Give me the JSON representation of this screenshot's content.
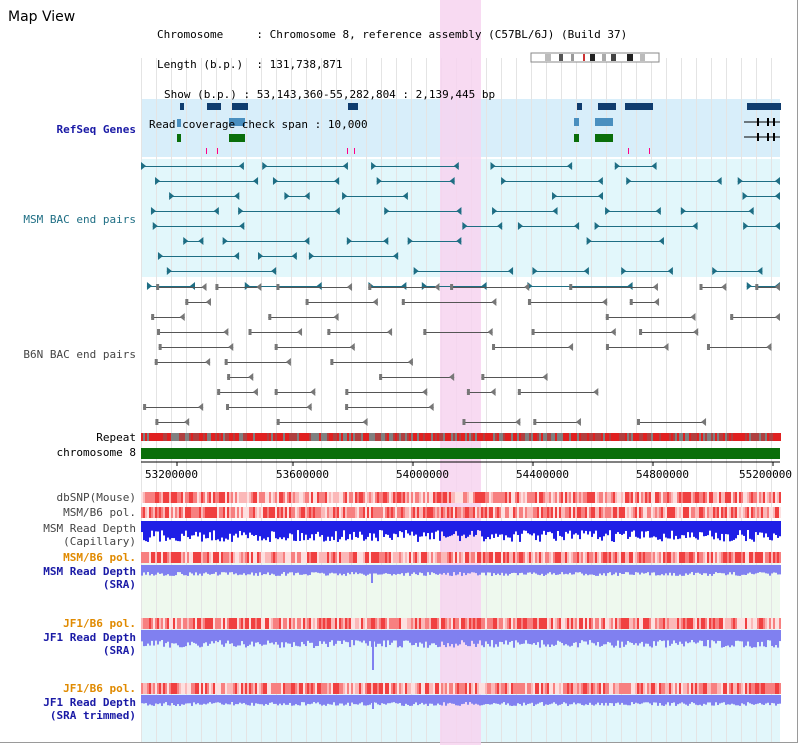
{
  "app": {
    "title": "Map View"
  },
  "info": {
    "chromosome_label": "Chromosome",
    "chromosome_value": "Chromosome 8, reference assembly (C57BL/6J) (Build 37)",
    "length_label": "Length (b.p.)",
    "length_value": "131,738,871",
    "show_label": "Show (b.p.)",
    "show_value": "53,143,360-55,282,804 : 2,139,445 bp",
    "coverage_label": "Read coverage check span",
    "coverage_value": "10,000"
  },
  "tracks": {
    "refseq": "RefSeq Genes",
    "msm_bac": "MSM BAC end pairs",
    "b6n_bac": "B6N BAC end pairs",
    "repeat": "Repeat",
    "chromosome": "chromosome 8",
    "dbsnp": "dbSNP(Mouse)",
    "msm_b6_pol": "MSM/B6 pol.",
    "msm_depth_cap_1": "MSM Read Depth",
    "msm_depth_cap_2": "(Capillary)",
    "msm_b6_pol_2": "MSM/B6 pol.",
    "msm_depth_sra_1": "MSM Read Depth",
    "msm_depth_sra_2": "(SRA)",
    "jf1_b6_pol": "JF1/B6 pol.",
    "jf1_depth_sra_1": "JF1 Read Depth",
    "jf1_depth_sra_2": "(SRA)",
    "jf1_b6_pol_2": "JF1/B6 pol.",
    "jf1_depth_trim_1": "JF1 Read Depth",
    "jf1_depth_trim_2": "(SRA trimmed)"
  },
  "axis": {
    "ticks": [
      "53200000",
      "53600000",
      "54000000",
      "54400000",
      "54800000",
      "55200000"
    ]
  },
  "colors": {
    "highlight": "#f7d3f0",
    "refseq_bg": "#d8eefa",
    "msm_bg": "#e2f7fb",
    "chromosome_bar": "#0a6e0a",
    "gene_dark": "#0f3c6e",
    "gene_mid": "#4a8fbf",
    "gene_green": "#0a6e0a",
    "bac_teal": "#1e6e84",
    "bac_grey": "#777777",
    "depth_blue": "#1f1fe6",
    "depth_light": "#8080f0"
  },
  "icons": {
    "ideogram": "chromosome-ideogram-icon"
  }
}
